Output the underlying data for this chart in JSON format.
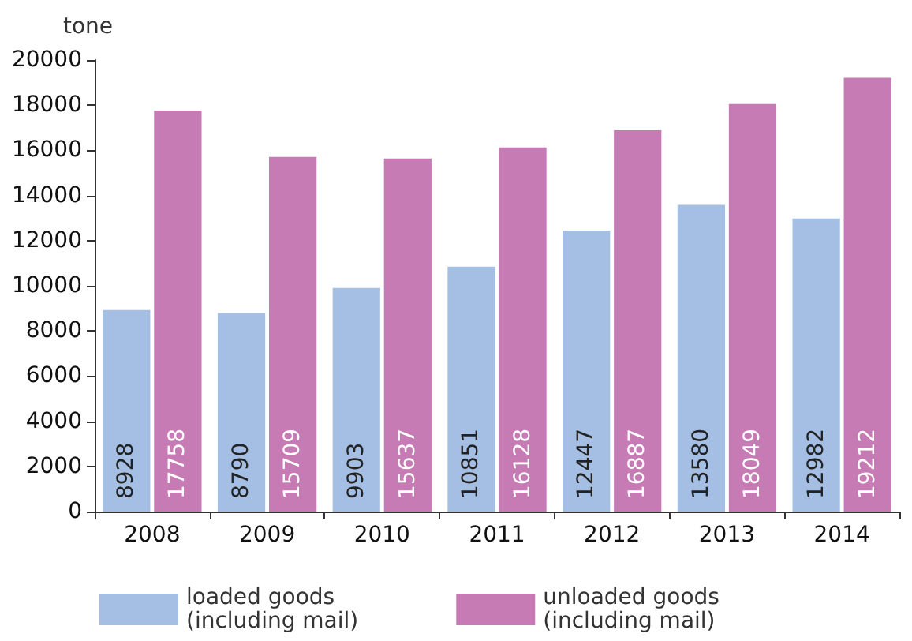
{
  "chart_data": {
    "type": "bar",
    "ylabel": "tone",
    "categories": [
      "2008",
      "2009",
      "2010",
      "2011",
      "2012",
      "2013",
      "2014"
    ],
    "series": [
      {
        "name": "loaded goods\n(including mail)",
        "color": "#a4bfe3",
        "values": [
          8928,
          8790,
          9903,
          10851,
          12447,
          13580,
          12982
        ]
      },
      {
        "name": "unloaded goods\n(including mail)",
        "color": "#c77bb5",
        "values": [
          17758,
          15709,
          15637,
          16128,
          16887,
          18049,
          19212
        ]
      }
    ],
    "ylim": [
      0,
      20000
    ],
    "yticks": [
      0,
      2000,
      4000,
      6000,
      8000,
      10000,
      12000,
      14000,
      16000,
      18000,
      20000
    ],
    "grid": false,
    "legend": "bottom",
    "data_labels": true
  }
}
